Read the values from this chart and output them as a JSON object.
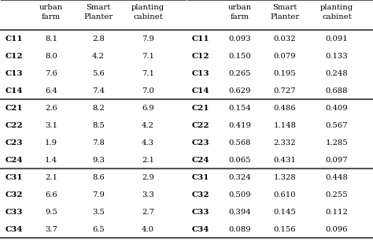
{
  "rows": [
    "C11",
    "C12",
    "C13",
    "C14",
    "C21",
    "C22",
    "C23",
    "C24",
    "C31",
    "C32",
    "C33",
    "C34"
  ],
  "left_headers_line1": [
    "urban",
    "Smart",
    "planting"
  ],
  "left_headers_line2": [
    "farm",
    "Planter",
    "cabinet"
  ],
  "right_headers_line1": [
    "urban",
    "Smart",
    "planting"
  ],
  "right_headers_line2": [
    "farm",
    "Planter",
    "cabinet"
  ],
  "left_data": {
    "C11": [
      "8.1",
      "2.8",
      "7.9"
    ],
    "C12": [
      "8.0",
      "4.2",
      "7.1"
    ],
    "C13": [
      "7.6",
      "5.6",
      "7.1"
    ],
    "C14": [
      "6.4",
      "7.4",
      "7.0"
    ],
    "C21": [
      "2.6",
      "8.2",
      "6.9"
    ],
    "C22": [
      "3.1",
      "8.5",
      "4.2"
    ],
    "C23": [
      "1.9",
      "7.8",
      "4.3"
    ],
    "C24": [
      "1.4",
      "9.3",
      "2.1"
    ],
    "C31": [
      "2.1",
      "8.6",
      "2.9"
    ],
    "C32": [
      "6.6",
      "7.9",
      "3.3"
    ],
    "C33": [
      "9.5",
      "3.5",
      "2.7"
    ],
    "C34": [
      "3.7",
      "6.5",
      "4.0"
    ]
  },
  "right_data": {
    "C11": [
      "0.093",
      "0.032",
      "0.091"
    ],
    "C12": [
      "0.150",
      "0.079",
      "0.133"
    ],
    "C13": [
      "0.265",
      "0.195",
      "0.248"
    ],
    "C14": [
      "0.629",
      "0.727",
      "0.688"
    ],
    "C21": [
      "0.154",
      "0.486",
      "0.409"
    ],
    "C22": [
      "0.419",
      "1.148",
      "0.567"
    ],
    "C23": [
      "0.568",
      "2.332",
      "1.285"
    ],
    "C24": [
      "0.065",
      "0.431",
      "0.097"
    ],
    "C31": [
      "0.324",
      "1.328",
      "0.448"
    ],
    "C32": [
      "0.509",
      "0.610",
      "0.255"
    ],
    "C33": [
      "0.394",
      "0.145",
      "0.112"
    ],
    "C34": [
      "0.089",
      "0.156",
      "0.096"
    ]
  },
  "group_separators_after": [
    4,
    8
  ],
  "bg_color": "#ffffff",
  "line_color": "#555555",
  "text_color": "#000000",
  "header_fontsize": 7.2,
  "data_fontsize": 7.2,
  "row_label_fontsize": 7.5
}
